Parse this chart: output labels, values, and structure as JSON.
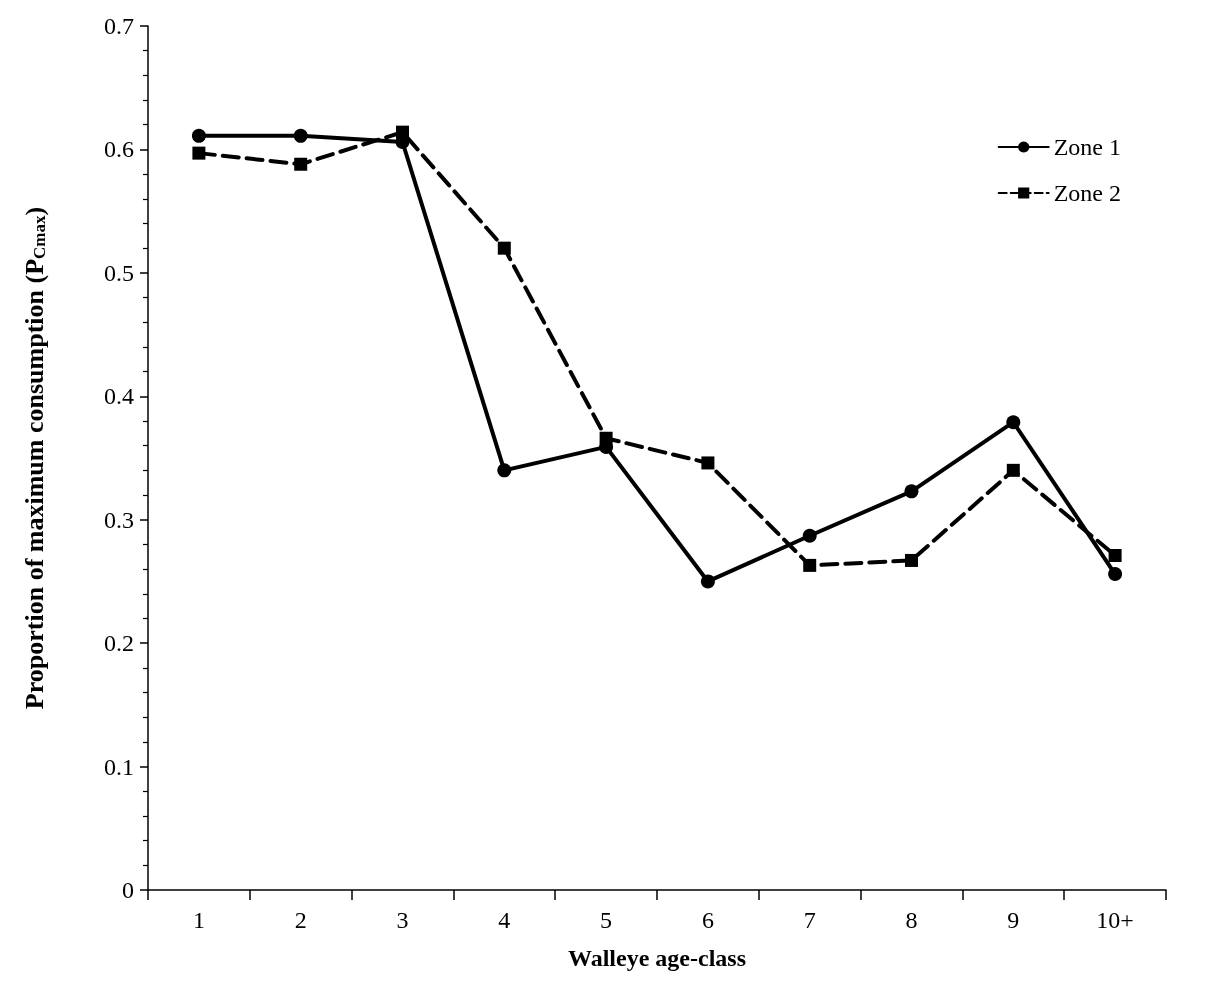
{
  "chart_data": {
    "type": "line",
    "xlabel": "Walleye age-class",
    "ylabel": "Proportion of maximum consumption (P$_{Cmax}$)",
    "categories": [
      "1",
      "2",
      "3",
      "4",
      "5",
      "6",
      "7",
      "8",
      "9",
      "10+"
    ],
    "series": [
      {
        "name": "Zone 1",
        "color": "#000000",
        "marker": "circle",
        "line_style": "solid",
        "values": [
          0.611,
          0.611,
          0.606,
          0.34,
          0.359,
          0.25,
          0.287,
          0.323,
          0.379,
          0.256
        ]
      },
      {
        "name": "Zone 2",
        "color": "#000000",
        "marker": "square",
        "line_style": "dashed",
        "values": [
          0.597,
          0.588,
          0.614,
          0.52,
          0.366,
          0.346,
          0.263,
          0.267,
          0.34,
          0.271
        ]
      }
    ],
    "ylim": [
      0,
      0.7
    ],
    "yticks": [
      0,
      0.1,
      0.2,
      0.3,
      0.4,
      0.5,
      0.6,
      0.7
    ],
    "grid": false,
    "legend": "top right"
  }
}
